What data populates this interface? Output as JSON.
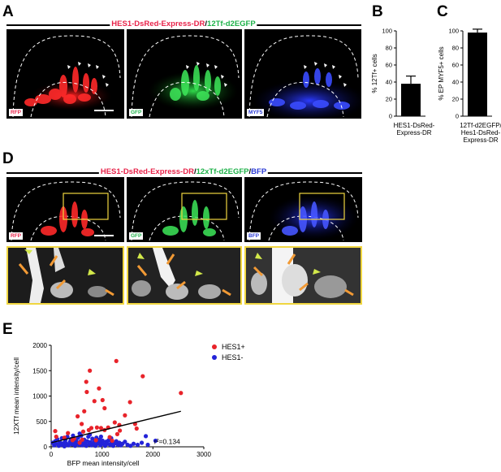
{
  "panels": {
    "A": "A",
    "B": "B",
    "C": "C",
    "D": "D",
    "E": "E"
  },
  "title_a": {
    "part1": "HES1-DsRed-Express-DR",
    "sep": "/",
    "part2": "12Tf-d2EGFP"
  },
  "title_d": {
    "part1": "HES1-DsRed-Express-DR",
    "sep1": "/",
    "part2": "12xTf-d2EGFP",
    "sep2": "/",
    "part3": "BFP"
  },
  "image_tags": {
    "rfp": "RFP",
    "gfp": "GFP",
    "myf5": "MYF5",
    "bfp": "BFP"
  },
  "colors": {
    "red": "#e8234a",
    "green": "#1fb24a",
    "blue": "#2b3bd6",
    "inset_frame": "#f0d640",
    "arrow": "#f29a35",
    "arrowhead": "#d2e84a"
  },
  "chart_data": [
    {
      "type": "bar",
      "panel": "B",
      "categories": [
        "HES1-DsRed-Express-DR"
      ],
      "category_lines": [
        "HES1-DsRed-",
        "Express-DR"
      ],
      "values": [
        38
      ],
      "errors": [
        9
      ],
      "ylabel": "% 12Tf+ cells",
      "ylim": [
        0,
        100
      ],
      "yticks": [
        0,
        20,
        40,
        60,
        80,
        100
      ]
    },
    {
      "type": "bar",
      "panel": "C",
      "categories": [
        "12Tf-d2EGFP/Hes1-DsRed-Express-DR"
      ],
      "category_lines": [
        "12Tf-d2EGFP/",
        "Hes1-DsRed-",
        "Express-DR"
      ],
      "values": [
        98
      ],
      "errors": [
        4
      ],
      "ylabel": "% EP MYF5+ cells",
      "ylim": [
        0,
        100
      ],
      "yticks": [
        0,
        20,
        40,
        60,
        80,
        100
      ]
    },
    {
      "type": "scatter",
      "panel": "E",
      "xlabel": "BFP mean intensity/cell",
      "ylabel": "12XTf mean intensity/cell",
      "xlim": [
        0,
        3000
      ],
      "ylim": [
        0,
        2000
      ],
      "xticks": [
        0,
        1000,
        2000,
        3000
      ],
      "yticks": [
        0,
        500,
        1000,
        1500,
        2000
      ],
      "annotation": "r²=0.134",
      "fit_line": {
        "x": [
          0,
          2550
        ],
        "y": [
          80,
          700
        ]
      },
      "legend_position": "top-right",
      "series": [
        {
          "name": "HES1+",
          "color": "#e8232a",
          "points": [
            [
              80,
              310
            ],
            [
              100,
              200
            ],
            [
              260,
              180
            ],
            [
              330,
              270
            ],
            [
              420,
              130
            ],
            [
              450,
              160
            ],
            [
              520,
              600
            ],
            [
              560,
              80
            ],
            [
              600,
              450
            ],
            [
              610,
              140
            ],
            [
              630,
              300
            ],
            [
              650,
              700
            ],
            [
              690,
              1280
            ],
            [
              700,
              1080
            ],
            [
              740,
              330
            ],
            [
              760,
              1500
            ],
            [
              790,
              370
            ],
            [
              850,
              900
            ],
            [
              880,
              130
            ],
            [
              900,
              380
            ],
            [
              940,
              1150
            ],
            [
              980,
              370
            ],
            [
              1010,
              920
            ],
            [
              1050,
              760
            ],
            [
              1120,
              380
            ],
            [
              1150,
              190
            ],
            [
              1200,
              120
            ],
            [
              1250,
              480
            ],
            [
              1280,
              1690
            ],
            [
              1340,
              430
            ],
            [
              1350,
              320
            ],
            [
              1450,
              620
            ],
            [
              1550,
              880
            ],
            [
              1650,
              450
            ],
            [
              1680,
              360
            ],
            [
              1800,
              1390
            ],
            [
              2550,
              1060
            ],
            [
              1300,
              250
            ],
            [
              1050,
              330
            ]
          ]
        },
        {
          "name": "HES1-",
          "color": "#2323d8",
          "points": [
            [
              30,
              80
            ],
            [
              60,
              30
            ],
            [
              80,
              110
            ],
            [
              100,
              60
            ],
            [
              120,
              150
            ],
            [
              150,
              20
            ],
            [
              170,
              90
            ],
            [
              200,
              40
            ],
            [
              210,
              170
            ],
            [
              240,
              70
            ],
            [
              260,
              10
            ],
            [
              280,
              130
            ],
            [
              300,
              60
            ],
            [
              320,
              200
            ],
            [
              340,
              30
            ],
            [
              370,
              100
            ],
            [
              390,
              150
            ],
            [
              410,
              50
            ],
            [
              430,
              220
            ],
            [
              450,
              80
            ],
            [
              470,
              20
            ],
            [
              490,
              120
            ],
            [
              510,
              60
            ],
            [
              530,
              180
            ],
            [
              550,
              40
            ],
            [
              570,
              100
            ],
            [
              590,
              220
            ],
            [
              610,
              30
            ],
            [
              630,
              80
            ],
            [
              650,
              140
            ],
            [
              670,
              60
            ],
            [
              690,
              20
            ],
            [
              710,
              110
            ],
            [
              730,
              200
            ],
            [
              750,
              50
            ],
            [
              770,
              90
            ],
            [
              790,
              30
            ],
            [
              810,
              160
            ],
            [
              830,
              70
            ],
            [
              850,
              110
            ],
            [
              870,
              20
            ],
            [
              890,
              180
            ],
            [
              910,
              60
            ],
            [
              930,
              100
            ],
            [
              950,
              140
            ],
            [
              970,
              30
            ],
            [
              990,
              80
            ],
            [
              1010,
              120
            ],
            [
              1040,
              50
            ],
            [
              1060,
              20
            ],
            [
              1080,
              100
            ],
            [
              1110,
              60
            ],
            [
              1130,
              130
            ],
            [
              1160,
              40
            ],
            [
              1190,
              90
            ],
            [
              1220,
              20
            ],
            [
              1250,
              70
            ],
            [
              1280,
              110
            ],
            [
              1310,
              40
            ],
            [
              1340,
              80
            ],
            [
              1370,
              30
            ],
            [
              1400,
              60
            ],
            [
              1450,
              100
            ],
            [
              1500,
              40
            ],
            [
              1560,
              20
            ],
            [
              1620,
              60
            ],
            [
              1700,
              40
            ],
            [
              1780,
              80
            ],
            [
              1860,
              210
            ],
            [
              1900,
              40
            ],
            [
              2050,
              120
            ],
            [
              1180,
              170
            ],
            [
              980,
              200
            ],
            [
              760,
              240
            ],
            [
              560,
              260
            ]
          ]
        }
      ]
    }
  ]
}
